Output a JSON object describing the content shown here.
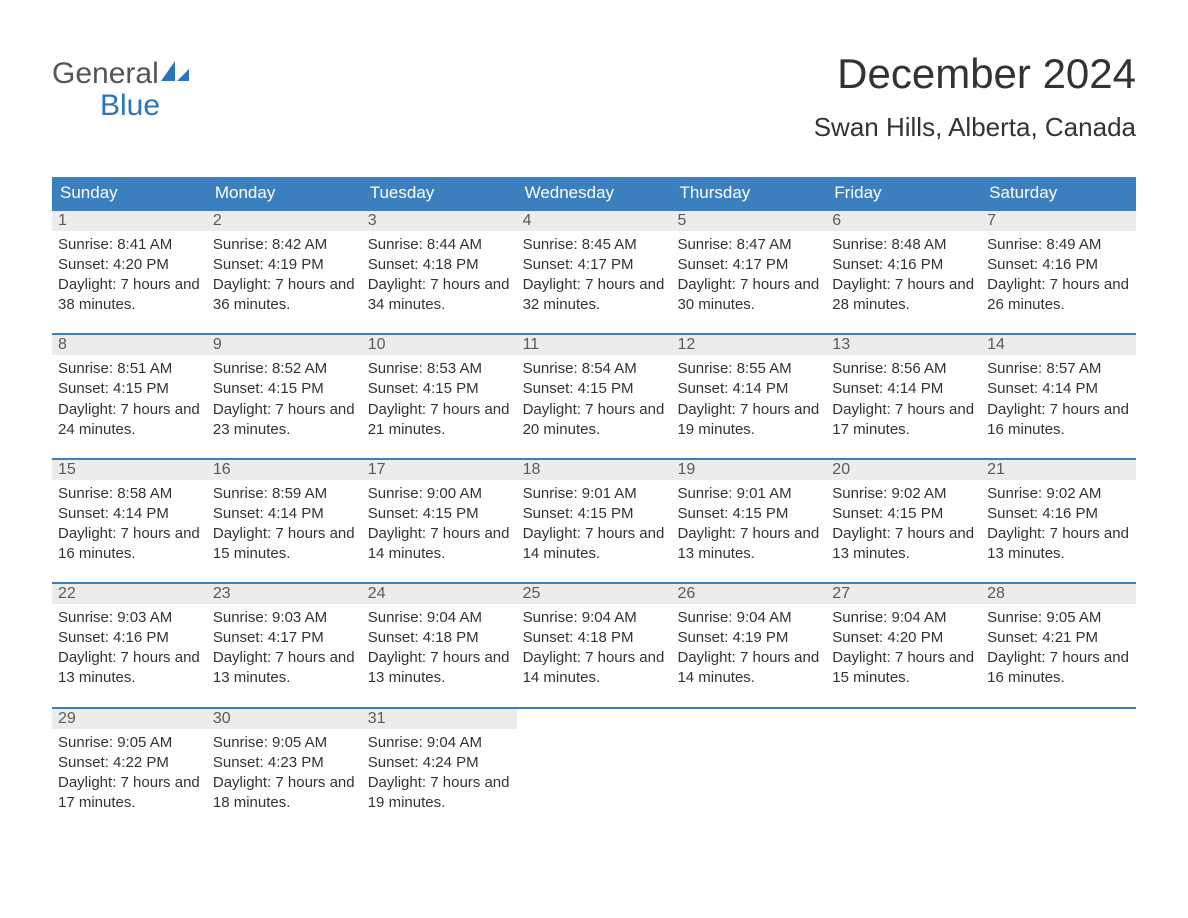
{
  "brand": {
    "word1": "General",
    "word2": "Blue",
    "color_gray": "#555555",
    "color_blue": "#2a76b8",
    "sail_color": "#2a76b8"
  },
  "title": "December 2024",
  "location": "Swan Hills, Alberta, Canada",
  "colors": {
    "header_bg": "#3c7fbf",
    "header_text": "#ffffff",
    "daynum_bg": "#ececec",
    "daynum_text": "#5a5a5a",
    "body_text": "#333333",
    "week_border": "#3c7fbf",
    "page_bg": "#ffffff"
  },
  "fonts": {
    "title_size_pt": 32,
    "location_size_pt": 20,
    "weekday_size_pt": 13,
    "daynum_size_pt": 12,
    "body_size_pt": 11
  },
  "weekdays": [
    "Sunday",
    "Monday",
    "Tuesday",
    "Wednesday",
    "Thursday",
    "Friday",
    "Saturday"
  ],
  "weeks": [
    [
      {
        "n": "1",
        "sunrise": "8:41 AM",
        "sunset": "4:20 PM",
        "daylight": "7 hours and 38 minutes."
      },
      {
        "n": "2",
        "sunrise": "8:42 AM",
        "sunset": "4:19 PM",
        "daylight": "7 hours and 36 minutes."
      },
      {
        "n": "3",
        "sunrise": "8:44 AM",
        "sunset": "4:18 PM",
        "daylight": "7 hours and 34 minutes."
      },
      {
        "n": "4",
        "sunrise": "8:45 AM",
        "sunset": "4:17 PM",
        "daylight": "7 hours and 32 minutes."
      },
      {
        "n": "5",
        "sunrise": "8:47 AM",
        "sunset": "4:17 PM",
        "daylight": "7 hours and 30 minutes."
      },
      {
        "n": "6",
        "sunrise": "8:48 AM",
        "sunset": "4:16 PM",
        "daylight": "7 hours and 28 minutes."
      },
      {
        "n": "7",
        "sunrise": "8:49 AM",
        "sunset": "4:16 PM",
        "daylight": "7 hours and 26 minutes."
      }
    ],
    [
      {
        "n": "8",
        "sunrise": "8:51 AM",
        "sunset": "4:15 PM",
        "daylight": "7 hours and 24 minutes."
      },
      {
        "n": "9",
        "sunrise": "8:52 AM",
        "sunset": "4:15 PM",
        "daylight": "7 hours and 23 minutes."
      },
      {
        "n": "10",
        "sunrise": "8:53 AM",
        "sunset": "4:15 PM",
        "daylight": "7 hours and 21 minutes."
      },
      {
        "n": "11",
        "sunrise": "8:54 AM",
        "sunset": "4:15 PM",
        "daylight": "7 hours and 20 minutes."
      },
      {
        "n": "12",
        "sunrise": "8:55 AM",
        "sunset": "4:14 PM",
        "daylight": "7 hours and 19 minutes."
      },
      {
        "n": "13",
        "sunrise": "8:56 AM",
        "sunset": "4:14 PM",
        "daylight": "7 hours and 17 minutes."
      },
      {
        "n": "14",
        "sunrise": "8:57 AM",
        "sunset": "4:14 PM",
        "daylight": "7 hours and 16 minutes."
      }
    ],
    [
      {
        "n": "15",
        "sunrise": "8:58 AM",
        "sunset": "4:14 PM",
        "daylight": "7 hours and 16 minutes."
      },
      {
        "n": "16",
        "sunrise": "8:59 AM",
        "sunset": "4:14 PM",
        "daylight": "7 hours and 15 minutes."
      },
      {
        "n": "17",
        "sunrise": "9:00 AM",
        "sunset": "4:15 PM",
        "daylight": "7 hours and 14 minutes."
      },
      {
        "n": "18",
        "sunrise": "9:01 AM",
        "sunset": "4:15 PM",
        "daylight": "7 hours and 14 minutes."
      },
      {
        "n": "19",
        "sunrise": "9:01 AM",
        "sunset": "4:15 PM",
        "daylight": "7 hours and 13 minutes."
      },
      {
        "n": "20",
        "sunrise": "9:02 AM",
        "sunset": "4:15 PM",
        "daylight": "7 hours and 13 minutes."
      },
      {
        "n": "21",
        "sunrise": "9:02 AM",
        "sunset": "4:16 PM",
        "daylight": "7 hours and 13 minutes."
      }
    ],
    [
      {
        "n": "22",
        "sunrise": "9:03 AM",
        "sunset": "4:16 PM",
        "daylight": "7 hours and 13 minutes."
      },
      {
        "n": "23",
        "sunrise": "9:03 AM",
        "sunset": "4:17 PM",
        "daylight": "7 hours and 13 minutes."
      },
      {
        "n": "24",
        "sunrise": "9:04 AM",
        "sunset": "4:18 PM",
        "daylight": "7 hours and 13 minutes."
      },
      {
        "n": "25",
        "sunrise": "9:04 AM",
        "sunset": "4:18 PM",
        "daylight": "7 hours and 14 minutes."
      },
      {
        "n": "26",
        "sunrise": "9:04 AM",
        "sunset": "4:19 PM",
        "daylight": "7 hours and 14 minutes."
      },
      {
        "n": "27",
        "sunrise": "9:04 AM",
        "sunset": "4:20 PM",
        "daylight": "7 hours and 15 minutes."
      },
      {
        "n": "28",
        "sunrise": "9:05 AM",
        "sunset": "4:21 PM",
        "daylight": "7 hours and 16 minutes."
      }
    ],
    [
      {
        "n": "29",
        "sunrise": "9:05 AM",
        "sunset": "4:22 PM",
        "daylight": "7 hours and 17 minutes."
      },
      {
        "n": "30",
        "sunrise": "9:05 AM",
        "sunset": "4:23 PM",
        "daylight": "7 hours and 18 minutes."
      },
      {
        "n": "31",
        "sunrise": "9:04 AM",
        "sunset": "4:24 PM",
        "daylight": "7 hours and 19 minutes."
      },
      null,
      null,
      null,
      null
    ]
  ],
  "labels": {
    "sunrise_prefix": "Sunrise: ",
    "sunset_prefix": "Sunset: ",
    "daylight_prefix": "Daylight: "
  }
}
